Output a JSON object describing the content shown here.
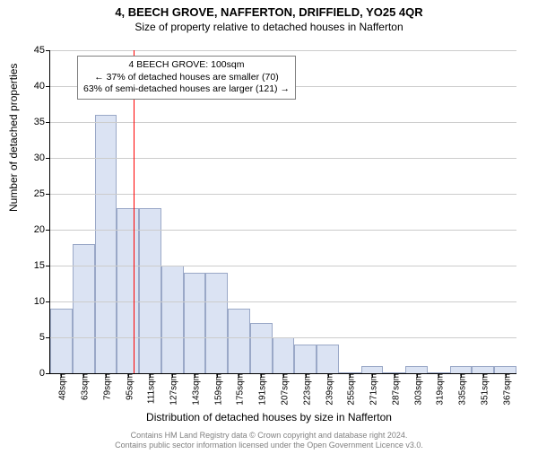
{
  "title": "4, BEECH GROVE, NAFFERTON, DRIFFIELD, YO25 4QR",
  "subtitle": "Size of property relative to detached houses in Nafferton",
  "x_axis_label": "Distribution of detached houses by size in Nafferton",
  "y_axis_label": "Number of detached properties",
  "chart": {
    "type": "histogram",
    "ylim": [
      0,
      45
    ],
    "ytick_step": 5,
    "background_color": "#ffffff",
    "grid_color": "#cccccc",
    "bar_fill": "#dbe3f3",
    "bar_border": "#9aa8c7",
    "ref_line_color": "#ff0000",
    "ref_line_x": 100,
    "x_start": 40,
    "x_step": 16,
    "bar_count": 21,
    "categories": [
      "48sqm",
      "63sqm",
      "79sqm",
      "95sqm",
      "111sqm",
      "127sqm",
      "143sqm",
      "159sqm",
      "175sqm",
      "191sqm",
      "207sqm",
      "223sqm",
      "239sqm",
      "255sqm",
      "271sqm",
      "287sqm",
      "303sqm",
      "319sqm",
      "335sqm",
      "351sqm",
      "367sqm"
    ],
    "values": [
      9,
      18,
      36,
      23,
      23,
      15,
      14,
      14,
      9,
      7,
      5,
      4,
      4,
      0,
      1,
      0,
      1,
      0,
      1,
      1,
      1
    ]
  },
  "annotation": {
    "line1": "4 BEECH GROVE: 100sqm",
    "line2": "← 37% of detached houses are smaller (70)",
    "line3": "63% of semi-detached houses are larger (121) →",
    "border_color": "#808080"
  },
  "attribution": {
    "line1": "Contains HM Land Registry data © Crown copyright and database right 2024.",
    "line2": "Contains public sector information licensed under the Open Government Licence v3.0."
  }
}
